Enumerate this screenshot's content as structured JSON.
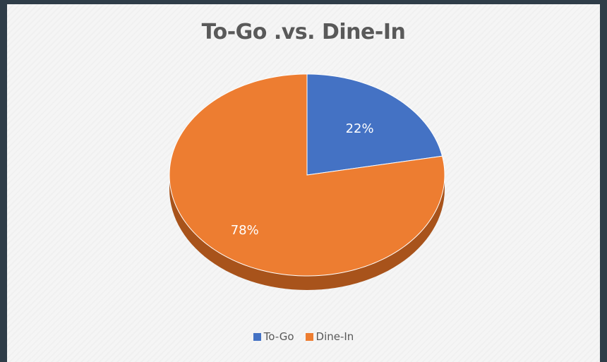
{
  "chart_data": {
    "type": "pie",
    "title": "To-Go .vs. Dine-In",
    "categories": [
      "To-Go",
      "Dine-In"
    ],
    "values": [
      22,
      78
    ],
    "labels": [
      "22%",
      "78%"
    ],
    "colors": [
      "#4472c4",
      "#ed7d31"
    ],
    "side_colors": [
      "#2f5597",
      "#a8531b"
    ],
    "legend_position": "bottom",
    "style": "3d"
  }
}
